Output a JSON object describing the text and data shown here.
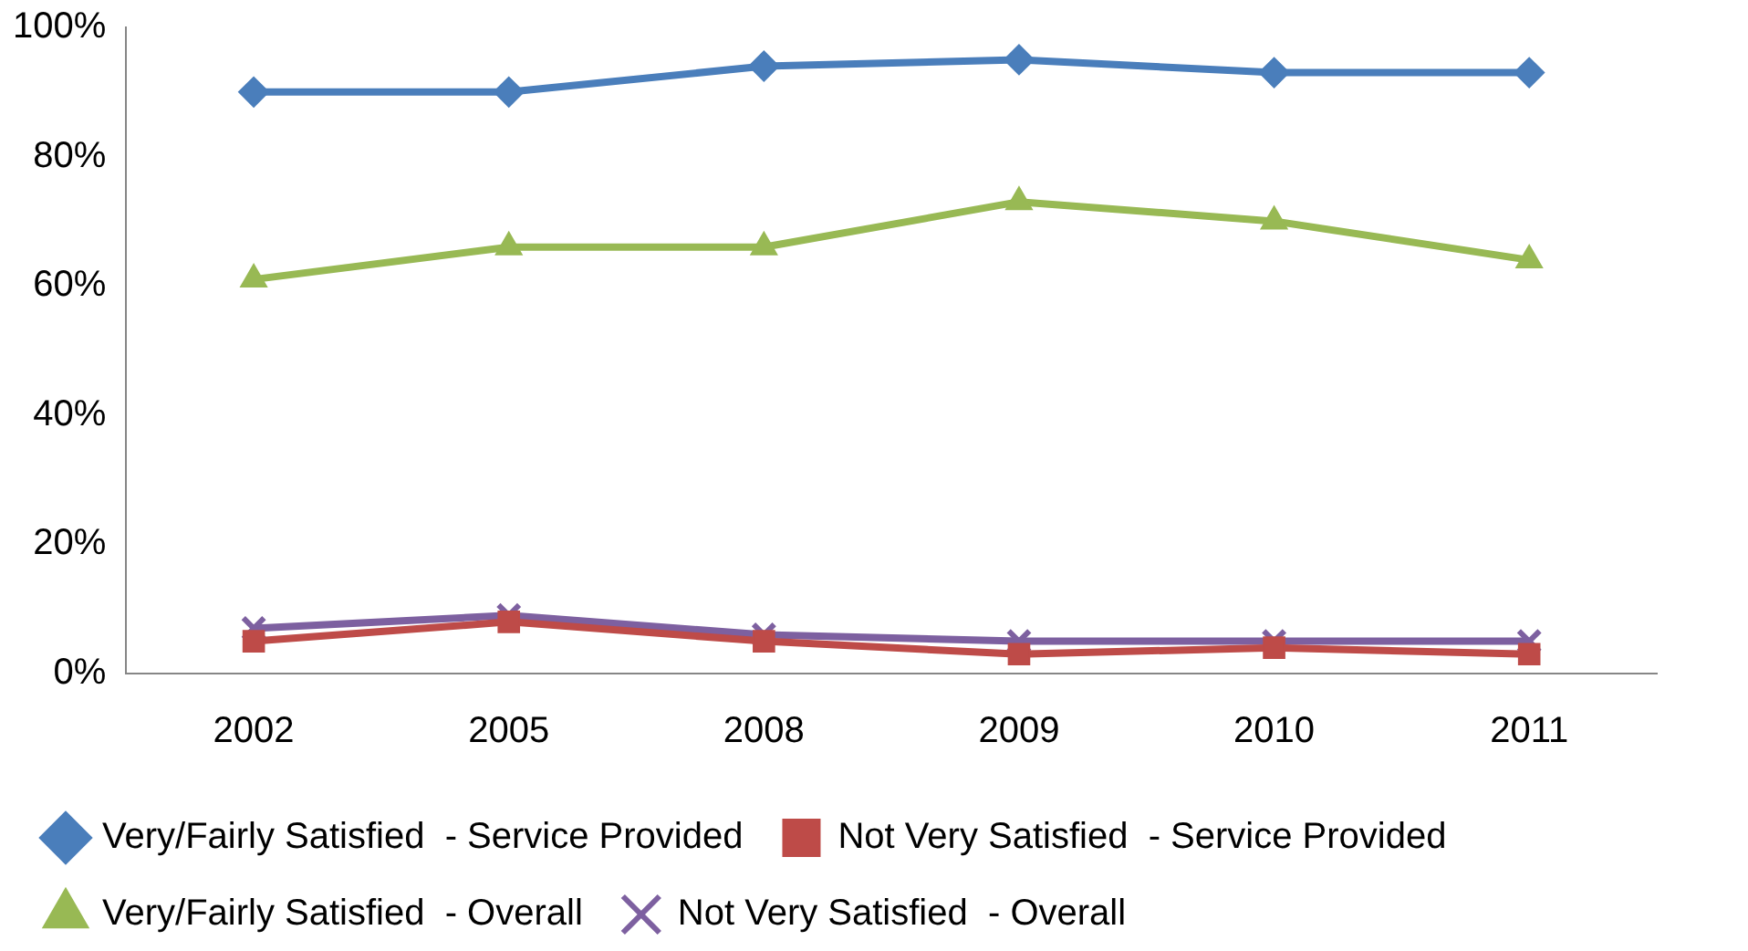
{
  "chart_data": {
    "type": "line",
    "categories": [
      "2002",
      "2005",
      "2008",
      "2009",
      "2010",
      "2011"
    ],
    "series": [
      {
        "name": "Very/Fairly Satisfied  - Service Provided",
        "color": "#4a7ebb",
        "marker": "diamond",
        "values": [
          90,
          90,
          94,
          95,
          93,
          93
        ]
      },
      {
        "name": "Not Very Satisfied  - Service Provided",
        "color": "#be4b48",
        "marker": "square",
        "values": [
          5,
          8,
          5,
          3,
          4,
          3
        ]
      },
      {
        "name": "Very/Fairly Satisfied  - Overall",
        "color": "#98b954",
        "marker": "triangle",
        "values": [
          61,
          66,
          66,
          73,
          70,
          64
        ]
      },
      {
        "name": "Not Very Satisfied  - Overall",
        "color": "#7d60a0",
        "marker": "cross",
        "values": [
          7,
          9,
          6,
          5,
          5,
          5
        ]
      }
    ],
    "ylim": [
      0,
      100
    ],
    "yticks": [
      {
        "value": 0,
        "label": "0%"
      },
      {
        "value": 20,
        "label": "20%"
      },
      {
        "value": 40,
        "label": "40%"
      },
      {
        "value": 60,
        "label": "60%"
      },
      {
        "value": 80,
        "label": "80%"
      },
      {
        "value": 100,
        "label": "100%"
      }
    ],
    "grid": false,
    "legend": "bottom"
  }
}
